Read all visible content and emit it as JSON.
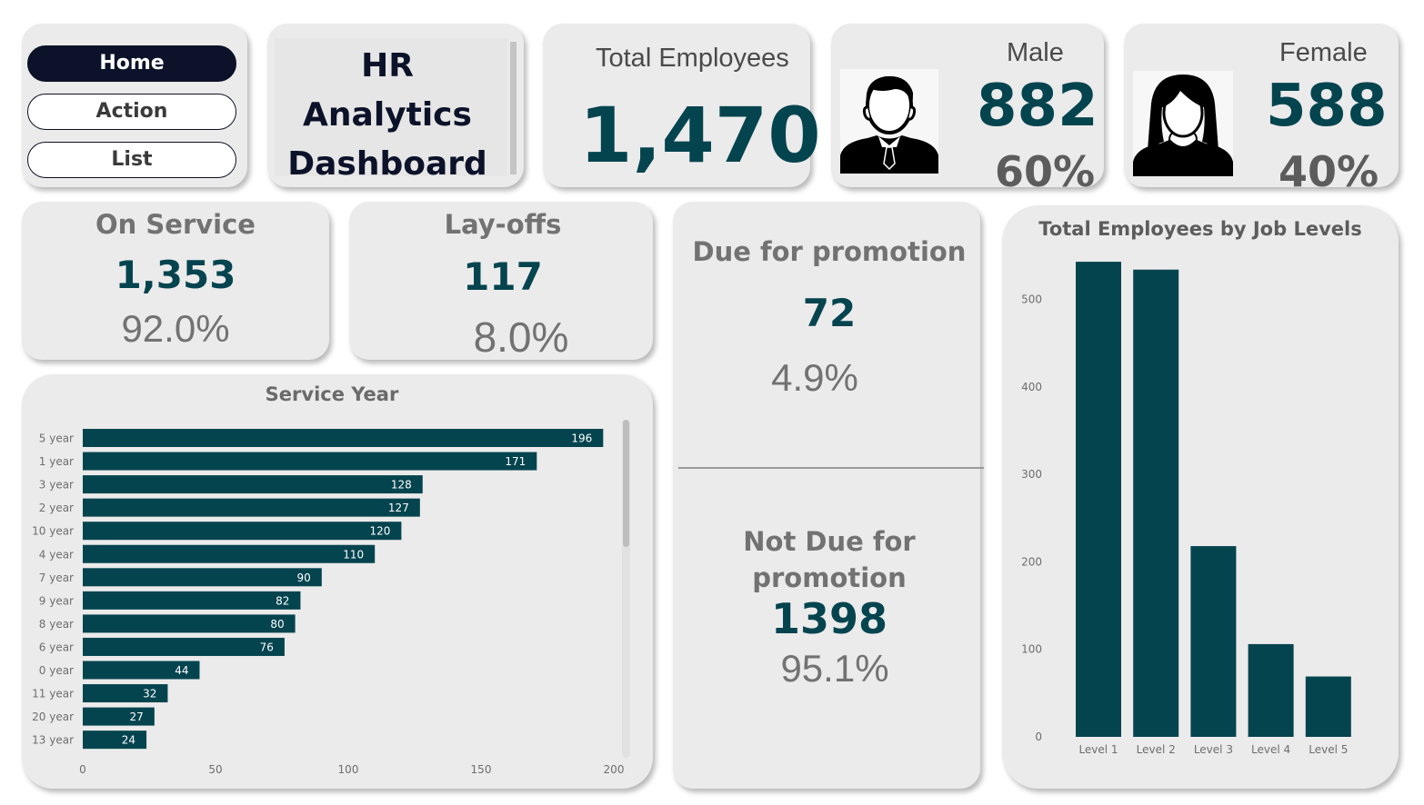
{
  "nav": {
    "home": "Home",
    "action": "Action",
    "list": "List"
  },
  "title": {
    "line1": "HR",
    "line2": "Analytics",
    "line3": "Dashboard"
  },
  "total": {
    "label": "Total Employees",
    "value": "1,470"
  },
  "male": {
    "label": "Male",
    "count": "882",
    "pct": "60%",
    "icon": "male-avatar-icon"
  },
  "female": {
    "label": "Female",
    "count": "588",
    "pct": "40%",
    "icon": "female-avatar-icon"
  },
  "on_service": {
    "label": "On Service",
    "count": "1,353",
    "pct": "92.0%"
  },
  "layoffs": {
    "label": "Lay-offs",
    "count": "117",
    "pct": "8.0%"
  },
  "promotion": {
    "due_label": "Due for promotion",
    "due_count": "72",
    "due_pct": "4.9%",
    "not_due_label_1": "Not Due for",
    "not_due_label_2": "promotion",
    "not_due_count": "1398",
    "not_due_pct": "95.1%"
  },
  "colors": {
    "accent": "#04444f",
    "navy": "#0b1229",
    "card": "#ebebeb",
    "muted": "#727272"
  },
  "chart_data": [
    {
      "type": "bar",
      "orientation": "horizontal",
      "title": "Service Year",
      "categories": [
        "5 year",
        "1 year",
        "3 year",
        "2 year",
        "10 year",
        "4 year",
        "7 year",
        "9 year",
        "8 year",
        "6 year",
        "0 year",
        "11 year",
        "20 year",
        "13 year"
      ],
      "values": [
        196,
        171,
        128,
        127,
        120,
        110,
        90,
        82,
        80,
        76,
        44,
        32,
        27,
        24
      ],
      "xticks": [
        0,
        50,
        100,
        150,
        200
      ],
      "xlim": [
        0,
        200
      ],
      "color": "#04444f",
      "grid": false
    },
    {
      "type": "bar",
      "orientation": "vertical",
      "title": "Total Employees by Job Levels",
      "categories": [
        "Level 1",
        "Level 2",
        "Level 3",
        "Level 4",
        "Level 5"
      ],
      "values": [
        543,
        534,
        218,
        106,
        69
      ],
      "yticks": [
        0,
        100,
        200,
        300,
        400,
        500
      ],
      "ylim": [
        0,
        543
      ],
      "color": "#04444f",
      "grid": false
    }
  ]
}
